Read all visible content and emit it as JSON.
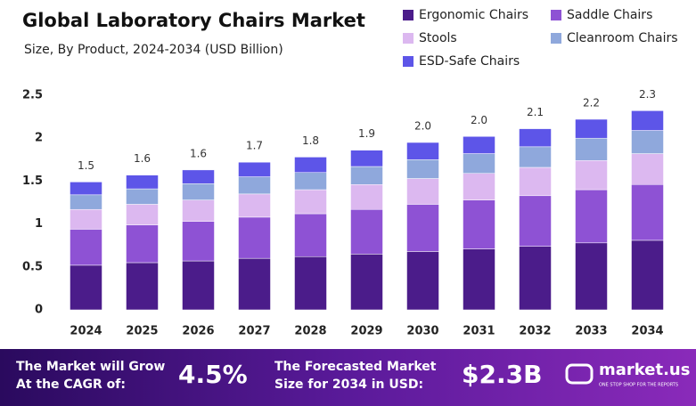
{
  "chart_data": {
    "type": "stacked-bar",
    "title": "Global Laboratory Chairs Market",
    "subtitle": "Size, By Product, 2024-2034 (USD Billion)",
    "categories": [
      "2024",
      "2025",
      "2026",
      "2027",
      "2028",
      "2029",
      "2030",
      "2031",
      "2032",
      "2033",
      "2034"
    ],
    "series": [
      {
        "name": "Ergonomic Chairs",
        "color": "#4b1c8a",
        "values": [
          0.52,
          0.55,
          0.57,
          0.6,
          0.62,
          0.65,
          0.68,
          0.71,
          0.74,
          0.78,
          0.81
        ]
      },
      {
        "name": "Saddle Chairs",
        "color": "#8e52d4",
        "values": [
          0.42,
          0.44,
          0.46,
          0.48,
          0.5,
          0.52,
          0.55,
          0.57,
          0.59,
          0.62,
          0.65
        ]
      },
      {
        "name": "Stools",
        "color": "#dcb8f0",
        "values": [
          0.23,
          0.24,
          0.25,
          0.27,
          0.28,
          0.29,
          0.3,
          0.31,
          0.33,
          0.34,
          0.36
        ]
      },
      {
        "name": "Cleanroom Chairs",
        "color": "#8fa8dc",
        "values": [
          0.17,
          0.18,
          0.19,
          0.2,
          0.2,
          0.21,
          0.22,
          0.23,
          0.24,
          0.26,
          0.27
        ]
      },
      {
        "name": "ESD-Safe Chairs",
        "color": "#5d55e8",
        "values": [
          0.15,
          0.16,
          0.16,
          0.17,
          0.18,
          0.19,
          0.2,
          0.2,
          0.21,
          0.22,
          0.23
        ]
      }
    ],
    "totals": {
      "values": [
        1.5,
        1.6,
        1.6,
        1.7,
        1.8,
        1.9,
        2.0,
        2.0,
        2.1,
        2.2,
        2.3
      ],
      "value_labels": [
        "1.5",
        "1.6",
        "1.6",
        "1.7",
        "1.8",
        "1.9",
        "2.0",
        "2.0",
        "2.1",
        "2.2",
        "2.3"
      ]
    },
    "ylim": [
      0,
      2.5
    ],
    "yticks": [
      0,
      0.5,
      1,
      1.5,
      2,
      2.5
    ],
    "grid": false
  },
  "footer": {
    "cagr_label": [
      "The Market will Grow",
      "At the CAGR of:"
    ],
    "cagr_value": "4.5%",
    "forecast_label": [
      "The Forecasted Market",
      "Size for 2034 in USD:"
    ],
    "forecast_value": "$2.3B",
    "brand": "market.us",
    "tagline": "ONE STOP SHOP FOR THE REPORTS"
  }
}
